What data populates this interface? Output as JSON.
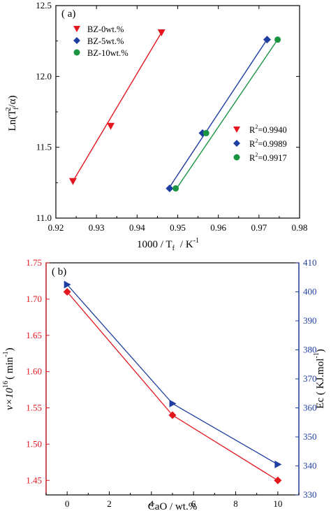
{
  "colors": {
    "red": "#e4171f",
    "blue": "#1f3fa0",
    "green": "#1b9441",
    "axis_black": "#000000"
  },
  "chart_data": [
    {
      "type": "scatter",
      "panel_label": "( a)",
      "xlabel": "1000 / T",
      "xlabel_sub": "f",
      "xlabel_unit": "/ K",
      "xlabel_unit_sup": "-1",
      "ylabel": "Ln(T",
      "ylabel_sub": "f",
      "ylabel_sup": "2",
      "ylabel_tail": "/α)",
      "xlim": [
        0.92,
        0.98
      ],
      "ylim": [
        11.0,
        12.5
      ],
      "xticks": [
        "0.92",
        "0.93",
        "0.94",
        "0.95",
        "0.96",
        "0.97",
        "0.98"
      ],
      "yticks": [
        "11.0",
        "11.5",
        "12.0",
        "12.5"
      ],
      "legend_top": [
        "BZ-0wt.%",
        "BZ-5wt.%",
        "BZ-10wt.%"
      ],
      "legend_r2": [
        "R",
        "R",
        "R"
      ],
      "legend_r2_values": [
        "=0.9940",
        "=0.9989",
        "=0.9917"
      ],
      "legend_r2_sup": "2",
      "series": [
        {
          "name": "BZ-0wt.%",
          "marker": "triangle-down",
          "color": "red",
          "x": [
            0.9242,
            0.9335,
            0.946
          ],
          "y": [
            11.26,
            11.65,
            12.31
          ],
          "fit": [
            [
              0.9242,
              11.26
            ],
            [
              0.946,
              12.31
            ]
          ]
        },
        {
          "name": "BZ-5wt.%",
          "marker": "diamond",
          "color": "blue",
          "x": [
            0.948,
            0.9561,
            0.972
          ],
          "y": [
            11.21,
            11.6,
            12.26
          ],
          "fit": [
            [
              0.9478,
              11.21
            ],
            [
              0.9722,
              12.27
            ]
          ]
        },
        {
          "name": "BZ-10wt.%",
          "marker": "circle",
          "color": "green",
          "x": [
            0.9495,
            0.957,
            0.9746
          ],
          "y": [
            11.21,
            11.6,
            12.26
          ],
          "fit": [
            [
              0.9495,
              11.2
            ],
            [
              0.9746,
              12.26
            ]
          ]
        }
      ]
    },
    {
      "type": "line",
      "panel_label": "( b)",
      "xlabel": "CaO / wt.%",
      "ylabel_left": "v×10",
      "ylabel_left_sup": "16",
      "ylabel_left_unit": "( min",
      "ylabel_left_unit_sup": "-1",
      "ylabel_left_close": ")",
      "ylabel_right": "Ec ( KJ.mol",
      "ylabel_right_sup": "-1",
      "ylabel_right_close": ")",
      "xlim": [
        -1,
        11
      ],
      "ylim_left": [
        1.43,
        1.75
      ],
      "ylim_right": [
        330,
        410
      ],
      "xticks": [
        "0",
        "2",
        "4",
        "6",
        "8",
        "10"
      ],
      "yticks_left": [
        "1.45",
        "1.50",
        "1.55",
        "1.60",
        "1.65",
        "1.70",
        "1.75"
      ],
      "yticks_right": [
        "330",
        "340",
        "350",
        "360",
        "370",
        "380",
        "390",
        "400",
        "410"
      ],
      "series": [
        {
          "name": "v",
          "axis": "left",
          "marker": "diamond",
          "color": "red",
          "x": [
            0,
            5,
            10
          ],
          "y": [
            1.71,
            1.54,
            1.45
          ]
        },
        {
          "name": "Ec",
          "axis": "right",
          "marker": "triangle-right",
          "color": "blue",
          "x": [
            0,
            5,
            10
          ],
          "y": [
            402.5,
            361.5,
            340.5
          ]
        }
      ]
    }
  ]
}
